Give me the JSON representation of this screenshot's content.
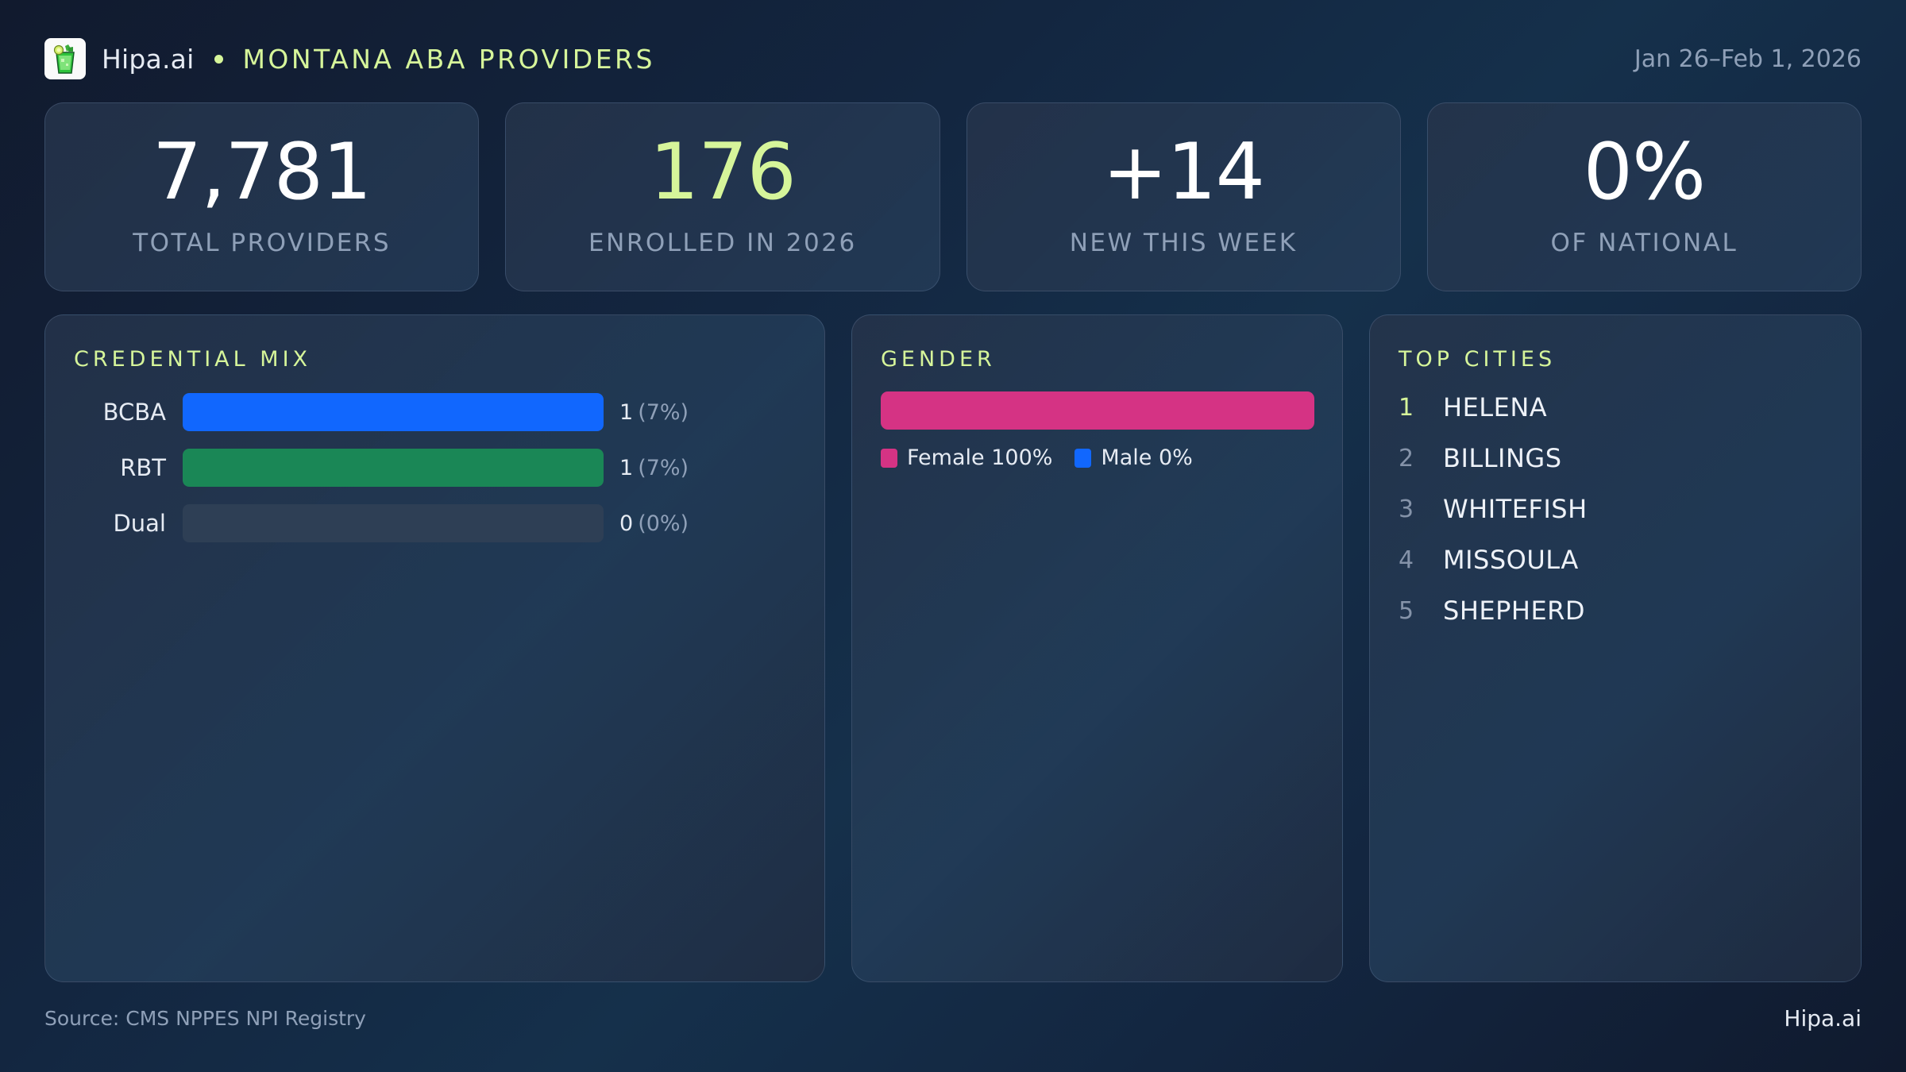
{
  "header": {
    "logo_icon": "mojito-glass-icon",
    "brand": "Hipa.ai",
    "separator": "•",
    "title": "MONTANA ABA PROVIDERS",
    "date_range": "Jan 26–Feb 1, 2026"
  },
  "stats": [
    {
      "value": "7,781",
      "label": "TOTAL PROVIDERS",
      "accent": false
    },
    {
      "value": "176",
      "label": "ENROLLED IN 2026",
      "accent": true
    },
    {
      "value": "+14",
      "label": "NEW THIS WEEK",
      "accent": false
    },
    {
      "value": "0%",
      "label": "OF NATIONAL",
      "accent": false
    }
  ],
  "credential_mix": {
    "title": "CREDENTIAL MIX",
    "rows": [
      {
        "label": "BCBA",
        "count": "1",
        "pct": "(7%)",
        "fill_pct": 100,
        "color": "#1167fe"
      },
      {
        "label": "RBT",
        "count": "1",
        "pct": "(7%)",
        "fill_pct": 100,
        "color": "#1a8756"
      },
      {
        "label": "Dual",
        "count": "0",
        "pct": "(0%)",
        "fill_pct": 0,
        "color": "#2e3f55"
      }
    ]
  },
  "gender": {
    "title": "GENDER",
    "segments": [
      {
        "label": "Female",
        "value": "100%",
        "pct": 100,
        "color": "#d53384"
      },
      {
        "label": "Male",
        "value": "0%",
        "pct": 0,
        "color": "#1167fe"
      }
    ],
    "legend": [
      {
        "text": "Female 100%",
        "color": "#d53384"
      },
      {
        "text": "Male 0%",
        "color": "#1167fe"
      }
    ]
  },
  "top_cities": {
    "title": "TOP CITIES",
    "items": [
      {
        "rank": "1",
        "name": "HELENA"
      },
      {
        "rank": "2",
        "name": "BILLINGS"
      },
      {
        "rank": "3",
        "name": "WHITEFISH"
      },
      {
        "rank": "4",
        "name": "MISSOULA"
      },
      {
        "rank": "5",
        "name": "SHEPHERD"
      }
    ]
  },
  "footer": {
    "source": "Source: CMS NPPES NPI Registry",
    "brand": "Hipa.ai"
  },
  "colors": {
    "accent": "#d6f59a",
    "bcba": "#1167fe",
    "rbt": "#1a8756",
    "female": "#d53384",
    "male": "#1167fe",
    "muted_text": "#8fa0b8"
  }
}
